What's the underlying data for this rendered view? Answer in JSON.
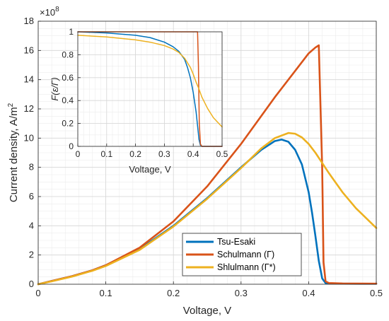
{
  "chart_data": [
    {
      "type": "line",
      "xlabel": "Voltage, V",
      "ylabel": "Current density, A/m",
      "ylabel_sup": "2",
      "y_exponent_base": "×10",
      "y_exponent_power": "8",
      "xlim": [
        0,
        0.5
      ],
      "ylim": [
        0,
        18
      ],
      "xticks": [
        "0",
        "0.1",
        "0.2",
        "0.3",
        "0.4",
        "0.5"
      ],
      "yticks": [
        "0",
        "2",
        "4",
        "6",
        "8",
        "10",
        "12",
        "14",
        "16",
        "18"
      ],
      "grid": true,
      "legend_position": "bottom-right",
      "series": [
        {
          "name": "Tsu-Esaki",
          "color": "#0072BD",
          "x": [
            0,
            0.02,
            0.05,
            0.08,
            0.1,
            0.15,
            0.2,
            0.25,
            0.3,
            0.33,
            0.35,
            0.36,
            0.37,
            0.38,
            0.39,
            0.4,
            0.405,
            0.41,
            0.415,
            0.42,
            0.425,
            0.43,
            0.45,
            0.5
          ],
          "values": [
            0,
            0.22,
            0.55,
            0.95,
            1.3,
            2.4,
            4.0,
            5.9,
            8.0,
            9.2,
            9.8,
            9.9,
            9.75,
            9.2,
            8.2,
            6.3,
            4.9,
            3.3,
            1.6,
            0.4,
            0.08,
            0.05,
            0.04,
            0.03
          ]
        },
        {
          "name": "Schulmann (Γ)",
          "color": "#D95319",
          "x": [
            0,
            0.02,
            0.05,
            0.08,
            0.1,
            0.15,
            0.2,
            0.25,
            0.3,
            0.35,
            0.38,
            0.4,
            0.41,
            0.415,
            0.42,
            0.422,
            0.425,
            0.43,
            0.45,
            0.5
          ],
          "values": [
            0,
            0.22,
            0.55,
            0.95,
            1.3,
            2.5,
            4.3,
            6.7,
            9.6,
            12.8,
            14.6,
            15.8,
            16.2,
            16.35,
            8.0,
            1.5,
            0.2,
            0.08,
            0.05,
            0.04
          ]
        },
        {
          "name": "Shlulmann (Γ*)",
          "color": "#EDB120",
          "x": [
            0,
            0.02,
            0.05,
            0.08,
            0.1,
            0.15,
            0.2,
            0.25,
            0.3,
            0.33,
            0.35,
            0.37,
            0.38,
            0.39,
            0.4,
            0.41,
            0.42,
            0.43,
            0.45,
            0.47,
            0.5
          ],
          "values": [
            0,
            0.2,
            0.52,
            0.92,
            1.25,
            2.35,
            3.95,
            5.85,
            7.95,
            9.3,
            10.0,
            10.35,
            10.3,
            10.05,
            9.6,
            9.0,
            8.3,
            7.6,
            6.3,
            5.2,
            3.85
          ]
        }
      ]
    },
    {
      "type": "line",
      "xlabel": "Voltage, V",
      "ylabel": "F(ε/Γ)",
      "xlim": [
        0,
        0.5
      ],
      "ylim": [
        0,
        1
      ],
      "xticks": [
        "0",
        "0.1",
        "0.2",
        "0.3",
        "0.4",
        "0.5"
      ],
      "yticks": [
        "0",
        "0.2",
        "0.4",
        "0.6",
        "0.8",
        "1"
      ],
      "grid": true,
      "series": [
        {
          "name": "Tsu-Esaki",
          "color": "#0072BD",
          "x": [
            0,
            0.1,
            0.2,
            0.25,
            0.3,
            0.33,
            0.35,
            0.37,
            0.38,
            0.39,
            0.4,
            0.41,
            0.415,
            0.42,
            0.425,
            0.43,
            0.5
          ],
          "values": [
            1.0,
            0.99,
            0.97,
            0.95,
            0.91,
            0.87,
            0.83,
            0.76,
            0.69,
            0.6,
            0.47,
            0.3,
            0.18,
            0.06,
            0.01,
            0.0,
            0.0
          ]
        },
        {
          "name": "Schulmann (Γ)",
          "color": "#D95319",
          "x": [
            0,
            0.1,
            0.2,
            0.3,
            0.4,
            0.415,
            0.418,
            0.421,
            0.425,
            0.43,
            0.5
          ],
          "values": [
            1.0,
            1.0,
            1.0,
            1.0,
            1.0,
            1.0,
            0.7,
            0.2,
            0.02,
            0.0,
            0.0
          ]
        },
        {
          "name": "Shlulmann (Γ*)",
          "color": "#EDB120",
          "x": [
            0,
            0.1,
            0.2,
            0.25,
            0.3,
            0.33,
            0.35,
            0.37,
            0.39,
            0.4,
            0.41,
            0.42,
            0.43,
            0.45,
            0.47,
            0.5
          ],
          "values": [
            0.97,
            0.955,
            0.93,
            0.91,
            0.88,
            0.85,
            0.82,
            0.77,
            0.69,
            0.63,
            0.56,
            0.5,
            0.43,
            0.33,
            0.25,
            0.17
          ]
        }
      ]
    }
  ]
}
